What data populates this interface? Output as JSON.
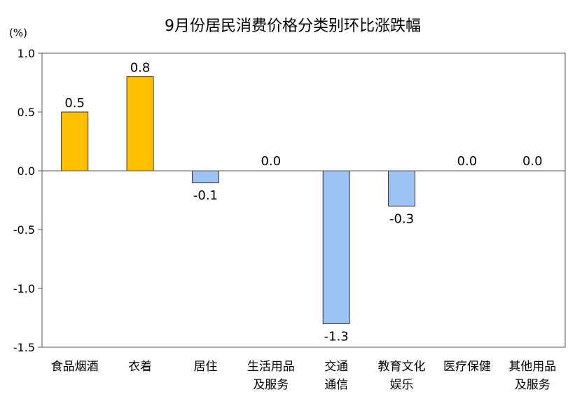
{
  "chart_data": {
    "type": "bar",
    "title": "9月份居民消费价格分类别环比涨跌幅",
    "unit": "(%)",
    "categories": [
      [
        "食品烟酒"
      ],
      [
        "衣着"
      ],
      [
        "居住"
      ],
      [
        "生活用品",
        "及服务"
      ],
      [
        "交通",
        "通信"
      ],
      [
        "教育文化",
        "娱乐"
      ],
      [
        "医疗保健"
      ],
      [
        "其他用品",
        "及服务"
      ]
    ],
    "values": [
      0.5,
      0.8,
      -0.1,
      0.0,
      -1.3,
      -0.3,
      0.0,
      0.0
    ],
    "value_labels": [
      "0.5",
      "0.8",
      "-0.1",
      "0.0",
      "-1.3",
      "-0.3",
      "0.0",
      "0.0"
    ],
    "ylim": [
      -1.5,
      1.0
    ],
    "yticks": [
      1.0,
      0.5,
      0.0,
      -0.5,
      -1.0,
      -1.5
    ],
    "ytick_labels": [
      "1.0",
      "0.5",
      "0.0",
      "-0.5",
      "-1.0",
      "-1.5"
    ],
    "grid": false,
    "colors": {
      "positive": "#ffc000",
      "negative": "#9dc3f5",
      "bar_edge": "#333333"
    }
  }
}
